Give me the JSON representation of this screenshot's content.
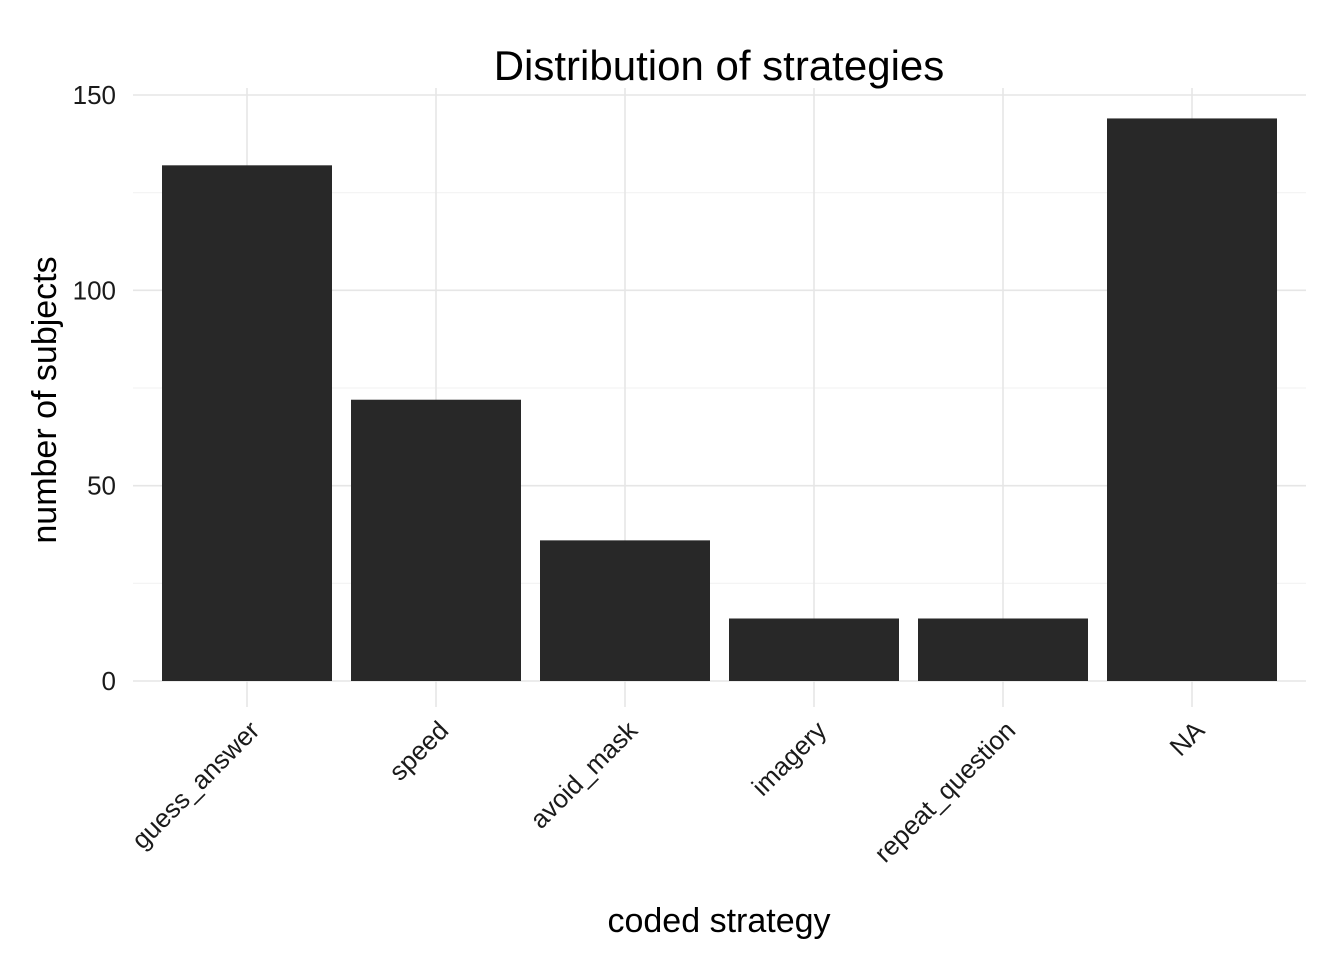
{
  "colors": {
    "bar": "#282828",
    "grid_major": "#e6e6e6",
    "grid_minor": "#f2f2f2",
    "background": "#ffffff"
  },
  "chart_data": {
    "type": "bar",
    "title": "Distribution of strategies",
    "xlabel": "coded strategy",
    "ylabel": "number of subjects",
    "categories": [
      "guess_answer",
      "speed",
      "avoid_mask",
      "imagery",
      "repeat_question",
      "NA"
    ],
    "values": [
      132,
      72,
      36,
      16,
      16,
      144
    ],
    "ylim": [
      0,
      150
    ],
    "yticks": [
      0,
      50,
      100,
      150
    ],
    "ytick_labels": [
      "0",
      "50",
      "100",
      "150"
    ],
    "grid": true,
    "legend": "none"
  }
}
